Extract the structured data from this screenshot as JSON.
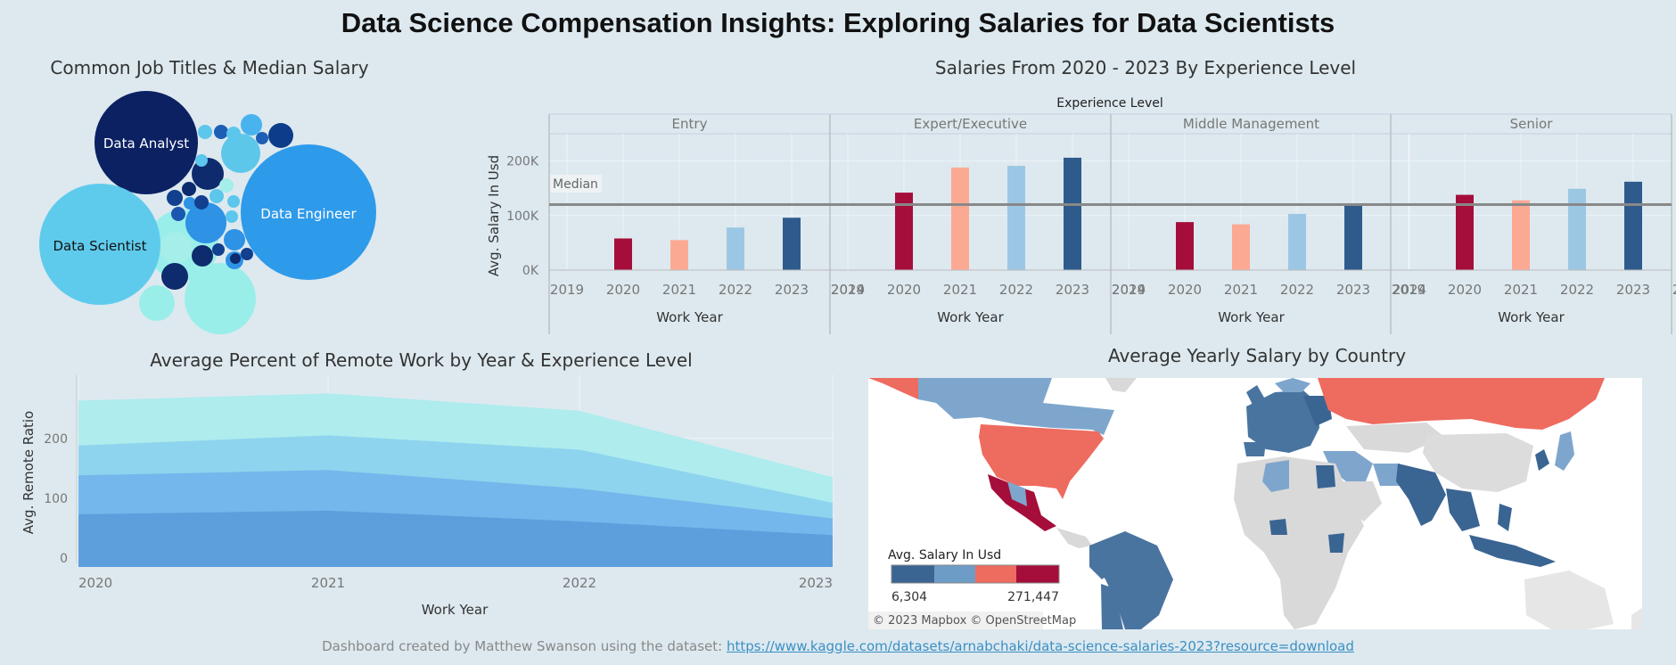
{
  "dashboard": {
    "title": "Data Science Compensation Insights: Exploring Salaries for Data Scientists",
    "footer_text": "Dashboard created by Matthew Swanson using the dataset: ",
    "footer_link": "https://www.kaggle.com/datasets/arnabchaki/data-science-salaries-2023?resource=download"
  },
  "bubble_chart": {
    "title": "Common Job Titles & Median Salary",
    "labels": [
      "Data Analyst",
      "Data Engineer",
      "Data Scientist"
    ]
  },
  "colors": {
    "background": "#dde9ef",
    "entry": "#a50e3a",
    "expert": "#fca994",
    "middle": "#9cc7e4",
    "senior": "#2e5b8c"
  },
  "chart_data": [
    {
      "type": "bar",
      "title": "Salaries From 2020 - 2023 By Experience Level",
      "column_header": "Experience Level",
      "panels": [
        "Entry",
        "Expert/Executive",
        "Middle Management",
        "Senior"
      ],
      "xlabel": "Work Year",
      "ylabel": "Avg. Salary In Usd",
      "x_ticks": [
        "2019",
        "2020",
        "2021",
        "2022",
        "2023",
        "2024"
      ],
      "y_ticks": [
        "0K",
        "100K",
        "200K"
      ],
      "ylim": [
        0,
        250000
      ],
      "reference_line": {
        "label": "Median",
        "value": 120000
      },
      "categories": [
        "2020",
        "2021",
        "2022",
        "2023"
      ],
      "series": [
        {
          "panel": "Entry",
          "values": [
            58000,
            55000,
            78000,
            96000
          ]
        },
        {
          "panel": "Expert/Executive",
          "values": [
            142000,
            188000,
            191000,
            206000
          ]
        },
        {
          "panel": "Middle Management",
          "values": [
            88000,
            84000,
            103000,
            119000
          ]
        },
        {
          "panel": "Senior",
          "values": [
            138000,
            128000,
            149000,
            162000
          ]
        }
      ]
    },
    {
      "type": "area",
      "title": "Average Percent of Remote Work by Year & Experience Level",
      "xlabel": "Work Year",
      "ylabel": "Avg. Remote Ratio",
      "x": [
        "2020",
        "2021",
        "2022",
        "2023"
      ],
      "y_ticks": [
        "0",
        "100",
        "200"
      ],
      "ylim": [
        -15,
        310
      ],
      "stacked": true,
      "series": [
        {
          "values": [
            72,
            78,
            60,
            37
          ],
          "color": "#5d9fdc"
        },
        {
          "values": [
            65,
            68,
            55,
            28
          ],
          "color": "#73b7ec"
        },
        {
          "values": [
            50,
            58,
            65,
            26
          ],
          "color": "#8fd4ee"
        },
        {
          "values": [
            75,
            70,
            65,
            43
          ],
          "color": "#aeecee"
        }
      ]
    },
    {
      "type": "map",
      "title": "Average Yearly Salary by Country",
      "legend_title": "Avg. Salary In Usd",
      "legend_min": "6,304",
      "legend_max": "271,447",
      "legend_colors": [
        "#3a6592",
        "#6d9cc7",
        "#ee6b5f",
        "#a50e3a"
      ],
      "attribution": "© 2023 Mapbox © OpenStreetMap"
    }
  ]
}
